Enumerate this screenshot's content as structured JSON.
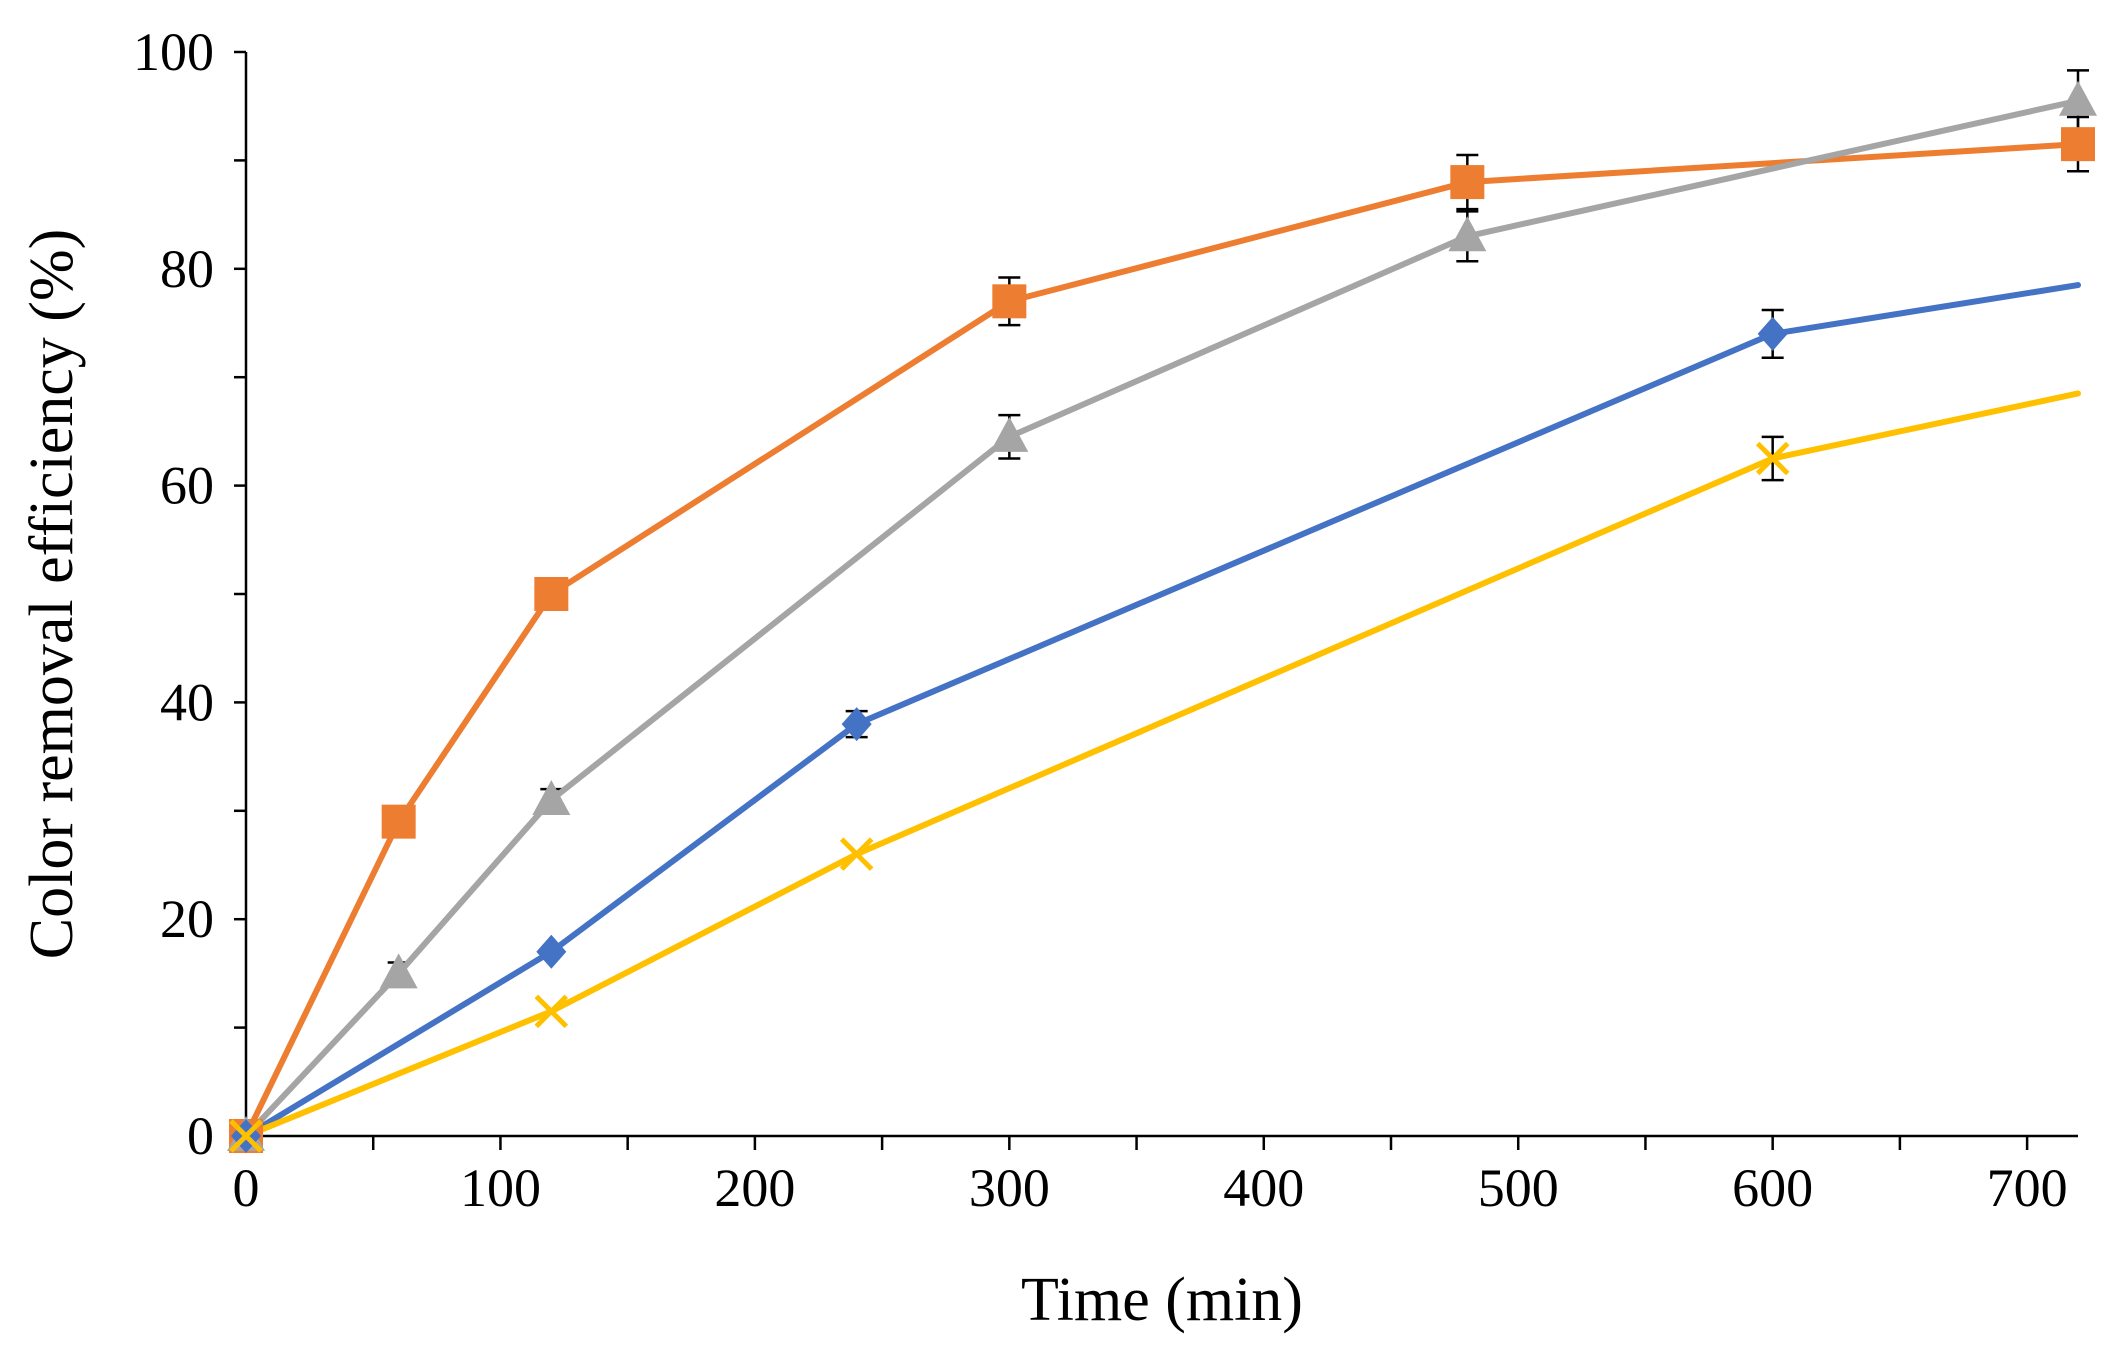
{
  "chart_data": {
    "type": "line",
    "xlabel": "Time (min)",
    "ylabel": "Color removal efficiency (%)",
    "xlim": [
      0,
      720
    ],
    "ylim": [
      0,
      100
    ],
    "xticks": [
      0,
      100,
      200,
      300,
      400,
      500,
      600,
      700
    ],
    "yticks": [
      0,
      20,
      40,
      60,
      80,
      100
    ],
    "grid": false,
    "legend": "none",
    "series": [
      {
        "color": "#ED7D31",
        "marker": "square",
        "x": [
          0,
          60,
          120,
          300,
          480,
          720
        ],
        "y": [
          0,
          29,
          50,
          77,
          88,
          91.5
        ],
        "error": [
          0,
          0,
          0,
          2.2,
          2.5,
          2.5
        ]
      },
      {
        "color": "#A5A5A5",
        "marker": "triangle",
        "x": [
          0,
          60,
          120,
          300,
          480,
          720
        ],
        "y": [
          0,
          15,
          31,
          64.5,
          83,
          95.5
        ],
        "error": [
          0,
          1,
          1,
          2,
          2.3,
          2.8
        ]
      },
      {
        "color": "#4472C4",
        "marker": "diamond",
        "x": [
          0,
          120,
          240,
          600,
          720
        ],
        "y": [
          0,
          17,
          38,
          74,
          78.5
        ],
        "error": [
          0,
          0,
          1.2,
          2.2,
          0
        ]
      },
      {
        "color": "#FFC000",
        "marker": "x",
        "x": [
          0,
          120,
          240,
          600,
          720
        ],
        "y": [
          0,
          11.5,
          26,
          62.5,
          68.5
        ],
        "error": [
          0,
          0,
          0,
          2,
          0
        ]
      }
    ]
  }
}
